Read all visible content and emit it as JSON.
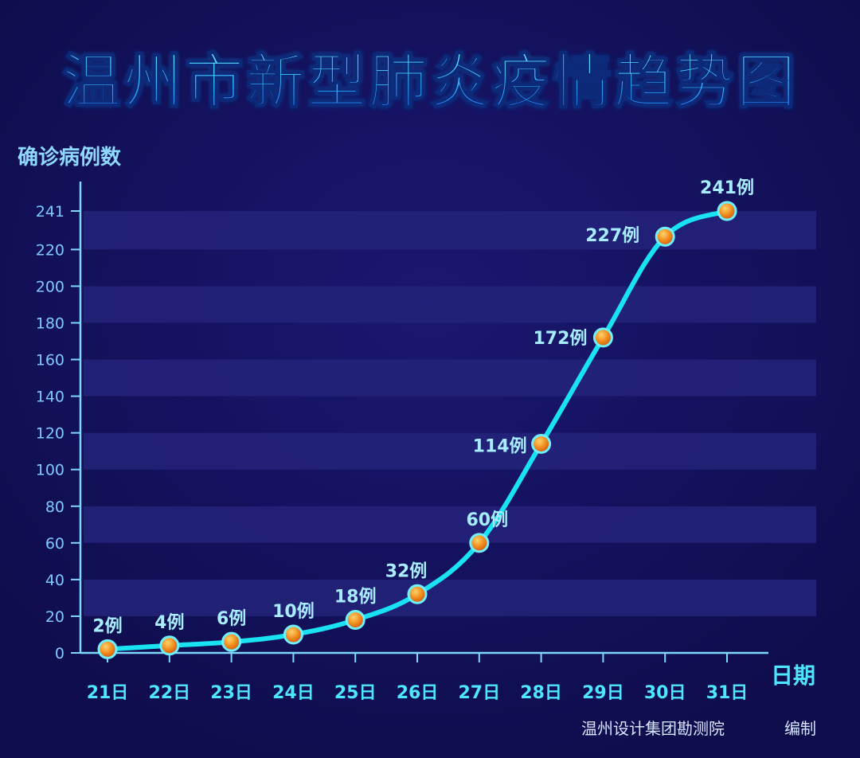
{
  "chart_data": {
    "type": "line",
    "title": "温州市新型肺炎疫情趋势图",
    "ylabel": "确诊病例数",
    "xlabel": "日期",
    "categories": [
      "21日",
      "22日",
      "23日",
      "24日",
      "25日",
      "26日",
      "27日",
      "28日",
      "29日",
      "30日",
      "31日"
    ],
    "values": [
      2,
      4,
      6,
      10,
      18,
      32,
      60,
      114,
      172,
      227,
      241
    ],
    "data_labels": [
      "2例",
      "4例",
      "6例",
      "10例",
      "18例",
      "32例",
      "60例",
      "114例",
      "172例",
      "227例",
      "241例"
    ],
    "yticks": [
      0,
      20,
      40,
      60,
      80,
      100,
      120,
      140,
      160,
      180,
      200,
      220,
      241
    ],
    "ylim": [
      0,
      241
    ],
    "grid": "banded",
    "line_color": "#19e3f2",
    "marker_color": "#f08a1c",
    "background_color": "#12105a"
  },
  "credit": {
    "org": "温州设计集团勘测院",
    "role": "编制"
  }
}
